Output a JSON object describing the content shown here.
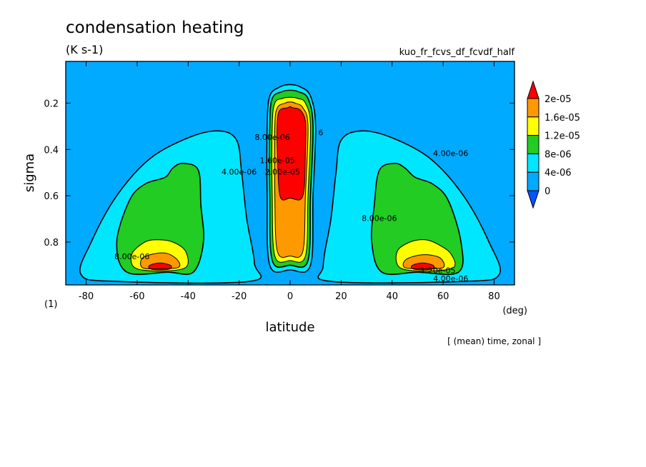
{
  "chart_data": {
    "type": "heatmap",
    "title": "condensation heating",
    "units": "(K s-1)",
    "experiment": "kuo_fr_fcvs_df_fcvdf_half",
    "panel_label": "(1)",
    "xlabel": "latitude",
    "xunits": "(deg)",
    "ylabel": "sigma",
    "footnote": "[ (mean) time, zonal ]",
    "xlim": [
      -88,
      88
    ],
    "ylim": [
      0.02,
      0.985
    ],
    "y_inverted": true,
    "x_ticks": [
      -80,
      -60,
      -40,
      -20,
      0,
      20,
      40,
      60,
      80
    ],
    "y_ticks": [
      0.2,
      0.4,
      0.6,
      0.8
    ],
    "grid": false,
    "legend_position": "right",
    "color_levels": [
      0,
      4e-06,
      8e-06,
      1.2e-05,
      1.6e-05,
      2e-05
    ],
    "colorbar_labels": [
      "2e-05",
      "1.6e-05",
      "1.2e-05",
      "8e-06",
      "4e-06",
      "0"
    ],
    "colors": {
      "band_0_4e6": "#00aaff",
      "band_4e6_8e6": "#00e6ff",
      "band_8e6_12e6": "#22cc22",
      "band_12e6_16e6": "#ffff00",
      "band_16e6_2e5": "#ff9900",
      "band_over_2e5": "#ff0000",
      "below_0": "#0055ff"
    },
    "contour_labels": [
      {
        "text": "4.00e-06",
        "lat": -20,
        "sigma": 0.5
      },
      {
        "text": "8.00e-06",
        "lat": -62,
        "sigma": 0.865
      },
      {
        "text": "4.00e-06",
        "lat": 63,
        "sigma": 0.42
      },
      {
        "text": "8.00e-06",
        "lat": 35,
        "sigma": 0.7
      },
      {
        "text": "1.20e-05",
        "lat": 58,
        "sigma": 0.925
      },
      {
        "text": "4.00e-06",
        "lat": 63,
        "sigma": 0.96
      },
      {
        "text": "8.00e-06",
        "lat": -7,
        "sigma": 0.35
      },
      {
        "text": "1.60e-05",
        "lat": -5,
        "sigma": 0.45
      },
      {
        "text": "2.00e-05",
        "lat": -3,
        "sigma": 0.5
      },
      {
        "text": "6",
        "lat": 12,
        "sigma": 0.33
      }
    ],
    "contours": [
      {
        "level": 4e-06,
        "points": [
          [
            -68,
            0.97
          ],
          [
            -82,
            0.94
          ],
          [
            -78,
            0.8
          ],
          [
            -68,
            0.6
          ],
          [
            -55,
            0.44
          ],
          [
            -40,
            0.35
          ],
          [
            -28,
            0.32
          ],
          [
            -21,
            0.36
          ],
          [
            -19,
            0.5
          ],
          [
            -17,
            0.7
          ],
          [
            -14,
            0.89
          ],
          [
            -16,
            0.97
          ]
        ]
      },
      {
        "level": 8e-06,
        "points": [
          [
            -64,
            0.93
          ],
          [
            -68,
            0.8
          ],
          [
            -63,
            0.62
          ],
          [
            -57,
            0.55
          ],
          [
            -49,
            0.52
          ],
          [
            -46,
            0.48
          ],
          [
            -42,
            0.46
          ],
          [
            -36,
            0.49
          ],
          [
            -35,
            0.64
          ],
          [
            -34,
            0.8
          ],
          [
            -38,
            0.93
          ],
          [
            -48,
            0.93
          ]
        ]
      },
      {
        "level": 1.2e-05,
        "points": [
          [
            -61,
            0.91
          ],
          [
            -62,
            0.85
          ],
          [
            -57,
            0.8
          ],
          [
            -52,
            0.79
          ],
          [
            -46,
            0.8
          ],
          [
            -41,
            0.84
          ],
          [
            -41,
            0.91
          ],
          [
            -52,
            0.925
          ]
        ]
      },
      {
        "level": 1.6e-05,
        "points": [
          [
            -58,
            0.91
          ],
          [
            -58,
            0.87
          ],
          [
            -53,
            0.85
          ],
          [
            -48,
            0.85
          ],
          [
            -44,
            0.88
          ],
          [
            -44,
            0.91
          ],
          [
            -52,
            0.915
          ]
        ]
      },
      {
        "level": 2e-05,
        "points": [
          [
            -55,
            0.915
          ],
          [
            -55,
            0.9
          ],
          [
            -51,
            0.89
          ],
          [
            -47,
            0.9
          ],
          [
            -47,
            0.915
          ],
          [
            -51,
            0.92
          ]
        ]
      },
      {
        "level": 4e-06,
        "points": [
          [
            16,
            0.97
          ],
          [
            13,
            0.9
          ],
          [
            16,
            0.7
          ],
          [
            18,
            0.5
          ],
          [
            20,
            0.36
          ],
          [
            28,
            0.32
          ],
          [
            40,
            0.35
          ],
          [
            55,
            0.44
          ],
          [
            68,
            0.6
          ],
          [
            78,
            0.8
          ],
          [
            82,
            0.94
          ],
          [
            68,
            0.97
          ]
        ]
      },
      {
        "level": 8e-06,
        "points": [
          [
            36,
            0.93
          ],
          [
            32,
            0.8
          ],
          [
            33,
            0.64
          ],
          [
            35,
            0.49
          ],
          [
            41,
            0.46
          ],
          [
            45,
            0.48
          ],
          [
            49,
            0.52
          ],
          [
            56,
            0.55
          ],
          [
            62,
            0.62
          ],
          [
            67,
            0.8
          ],
          [
            66,
            0.93
          ],
          [
            50,
            0.93
          ]
        ]
      },
      {
        "level": 1.2e-05,
        "points": [
          [
            43,
            0.91
          ],
          [
            42,
            0.84
          ],
          [
            47,
            0.8
          ],
          [
            53,
            0.79
          ],
          [
            58,
            0.81
          ],
          [
            63,
            0.85
          ],
          [
            64,
            0.91
          ],
          [
            53,
            0.925
          ]
        ]
      },
      {
        "level": 1.6e-05,
        "points": [
          [
            45,
            0.91
          ],
          [
            45,
            0.88
          ],
          [
            49,
            0.86
          ],
          [
            54,
            0.855
          ],
          [
            59,
            0.87
          ],
          [
            60,
            0.91
          ],
          [
            52,
            0.915
          ]
        ]
      },
      {
        "level": 2e-05,
        "points": [
          [
            48,
            0.915
          ],
          [
            48,
            0.9
          ],
          [
            52,
            0.89
          ],
          [
            56,
            0.9
          ],
          [
            56,
            0.915
          ],
          [
            52,
            0.92
          ]
        ]
      },
      {
        "level": 4e-06,
        "points": [
          [
            -8,
            0.9
          ],
          [
            -9,
            0.6
          ],
          [
            -9,
            0.3
          ],
          [
            -8,
            0.17
          ],
          [
            -4,
            0.13
          ],
          [
            0,
            0.12
          ],
          [
            4,
            0.13
          ],
          [
            8,
            0.17
          ],
          [
            10,
            0.3
          ],
          [
            9,
            0.6
          ],
          [
            8,
            0.9
          ],
          [
            0,
            0.92
          ]
        ]
      },
      {
        "level": 8e-06,
        "points": [
          [
            -7,
            0.88
          ],
          [
            -8,
            0.6
          ],
          [
            -8,
            0.3
          ],
          [
            -7,
            0.18
          ],
          [
            -3,
            0.15
          ],
          [
            0,
            0.145
          ],
          [
            3,
            0.15
          ],
          [
            7,
            0.18
          ],
          [
            9,
            0.3
          ],
          [
            8,
            0.6
          ],
          [
            7,
            0.88
          ],
          [
            0,
            0.9
          ]
        ]
      },
      {
        "level": 1.2e-05,
        "points": [
          [
            -6,
            0.86
          ],
          [
            -7,
            0.6
          ],
          [
            -7,
            0.3
          ],
          [
            -6,
            0.2
          ],
          [
            -3,
            0.18
          ],
          [
            0,
            0.175
          ],
          [
            3,
            0.18
          ],
          [
            6,
            0.2
          ],
          [
            8,
            0.3
          ],
          [
            7,
            0.6
          ],
          [
            6,
            0.86
          ],
          [
            0,
            0.88
          ]
        ]
      },
      {
        "level": 1.6e-05,
        "points": [
          [
            -5,
            0.84
          ],
          [
            -6,
            0.6
          ],
          [
            -6,
            0.3
          ],
          [
            -5,
            0.22
          ],
          [
            -2,
            0.2
          ],
          [
            0,
            0.195
          ],
          [
            2,
            0.2
          ],
          [
            5,
            0.22
          ],
          [
            7,
            0.3
          ],
          [
            6,
            0.6
          ],
          [
            5,
            0.84
          ],
          [
            0,
            0.86
          ]
        ]
      },
      {
        "level": 2e-05,
        "points": [
          [
            -4,
            0.6
          ],
          [
            -5,
            0.4
          ],
          [
            -5,
            0.28
          ],
          [
            -4,
            0.23
          ],
          [
            -1,
            0.22
          ],
          [
            0,
            0.215
          ],
          [
            1,
            0.22
          ],
          [
            4,
            0.23
          ],
          [
            6,
            0.28
          ],
          [
            6,
            0.4
          ],
          [
            5,
            0.6
          ],
          [
            0,
            0.61
          ]
        ]
      }
    ]
  }
}
